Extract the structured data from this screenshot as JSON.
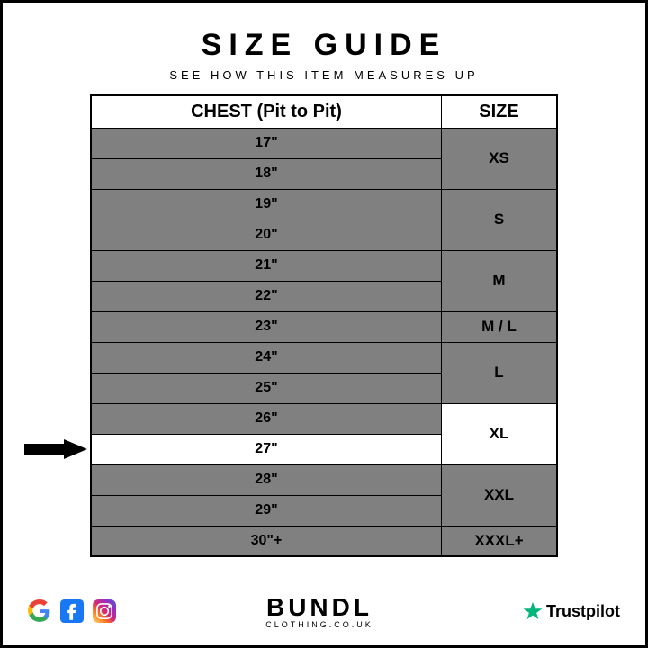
{
  "header": {
    "title": "SIZE GUIDE",
    "subtitle": "SEE HOW THIS ITEM MEASURES UP"
  },
  "table": {
    "columns": [
      "CHEST (Pit to Pit)",
      "SIZE"
    ],
    "chest_values": [
      "17\"",
      "18\"",
      "19\"",
      "20\"",
      "21\"",
      "22\"",
      "23\"",
      "24\"",
      "25\"",
      "26\"",
      "27\"",
      "28\"",
      "29\"",
      "30\"+"
    ],
    "sizes": [
      {
        "label": "XS",
        "span": 2
      },
      {
        "label": "S",
        "span": 2
      },
      {
        "label": "M",
        "span": 2
      },
      {
        "label": "M / L",
        "span": 1
      },
      {
        "label": "L",
        "span": 2
      },
      {
        "label": "XL",
        "span": 2
      },
      {
        "label": "XXL",
        "span": 2
      },
      {
        "label": "XXXL+",
        "span": 1
      }
    ],
    "highlight_chest_index": 10,
    "highlight_size_index": 5,
    "cell_bg": "#808080",
    "highlight_bg": "#ffffff",
    "border_color": "#000000",
    "chest_fontsize": 16,
    "size_fontsize": 17,
    "header_fontsize": 20
  },
  "arrow": {
    "color": "#000000"
  },
  "footer": {
    "brand_top": "BUNDL",
    "brand_bottom": "CLOTHING.CO.UK",
    "trustpilot": "Trustpilot",
    "trust_star_color": "#00b67a",
    "google_colors": {
      "G1": "#4285f4",
      "G2": "#ea4335",
      "G3": "#fbbc05",
      "G4": "#34a853"
    },
    "facebook_color": "#1877f2",
    "instagram_colors": [
      "#feda75",
      "#fa7e1e",
      "#d62976",
      "#962fbf",
      "#4f5bd5"
    ]
  }
}
